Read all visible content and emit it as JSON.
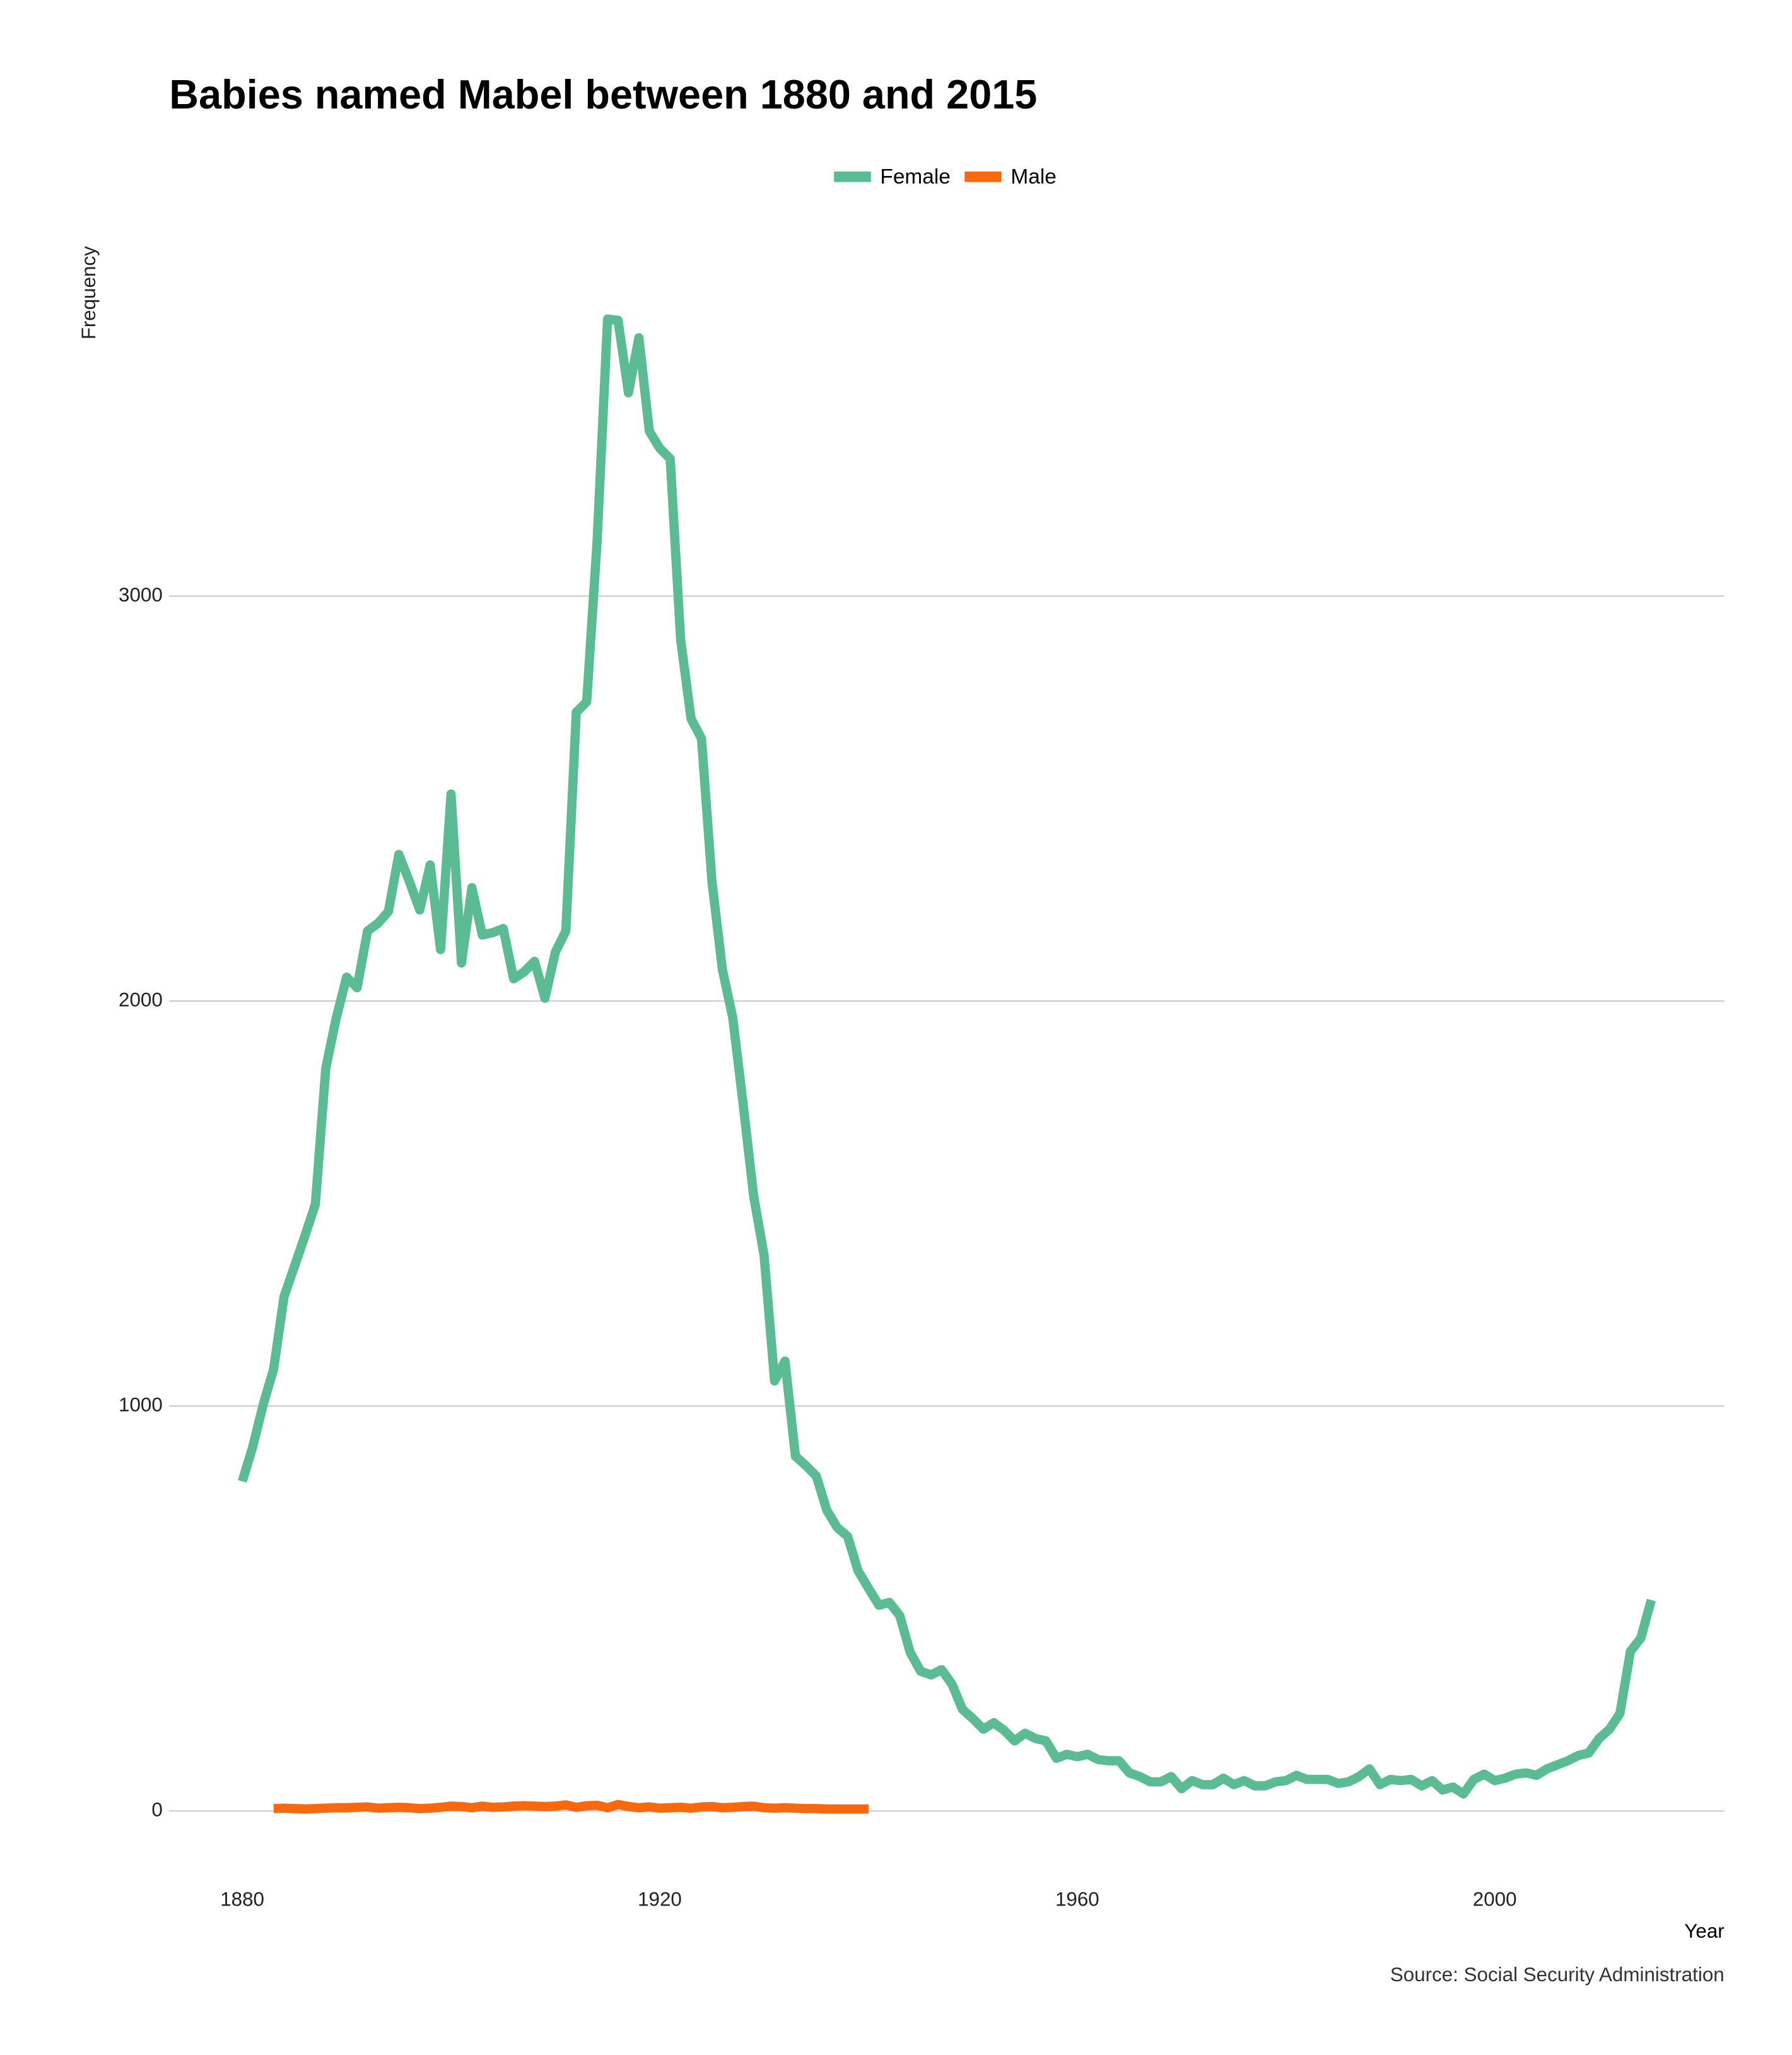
{
  "chart_data": {
    "type": "line",
    "title": "Babies named Mabel between 1880 and 2015",
    "y_label": "Frequency",
    "x_label": "Year",
    "source": "Source: Social Security Administration",
    "x": [
      1880,
      1881,
      1882,
      1883,
      1884,
      1885,
      1886,
      1887,
      1888,
      1889,
      1890,
      1891,
      1892,
      1893,
      1894,
      1895,
      1896,
      1897,
      1898,
      1899,
      1900,
      1901,
      1902,
      1903,
      1904,
      1905,
      1906,
      1907,
      1908,
      1909,
      1910,
      1911,
      1912,
      1913,
      1914,
      1915,
      1916,
      1917,
      1918,
      1919,
      1920,
      1921,
      1922,
      1923,
      1924,
      1925,
      1926,
      1927,
      1928,
      1929,
      1930,
      1931,
      1932,
      1933,
      1934,
      1935,
      1936,
      1937,
      1938,
      1939,
      1940,
      1941,
      1942,
      1943,
      1944,
      1945,
      1946,
      1947,
      1948,
      1949,
      1950,
      1951,
      1952,
      1953,
      1954,
      1955,
      1956,
      1957,
      1958,
      1959,
      1960,
      1961,
      1962,
      1963,
      1964,
      1965,
      1966,
      1967,
      1968,
      1969,
      1970,
      1971,
      1972,
      1973,
      1974,
      1975,
      1976,
      1977,
      1978,
      1979,
      1980,
      1981,
      1982,
      1983,
      1984,
      1985,
      1986,
      1987,
      1988,
      1989,
      1990,
      1991,
      1992,
      1993,
      1994,
      1995,
      1996,
      1997,
      1998,
      1999,
      2000,
      2001,
      2002,
      2003,
      2004,
      2005,
      2006,
      2007,
      2008,
      2009,
      2010,
      2011,
      2012,
      2013,
      2014,
      2015
    ],
    "series": [
      {
        "name": "Female",
        "color": "#5bbb93",
        "values": [
          814,
          899,
          1003,
          1091,
          1270,
          1345,
          1420,
          1498,
          1834,
          1958,
          2059,
          2033,
          2173,
          2192,
          2221,
          2362,
          2296,
          2225,
          2336,
          2127,
          2511,
          2094,
          2280,
          2163,
          2169,
          2179,
          2055,
          2072,
          2098,
          2007,
          2121,
          2173,
          2713,
          2739,
          3137,
          3684,
          3681,
          3502,
          3638,
          3407,
          3365,
          3339,
          2893,
          2697,
          2648,
          2296,
          2078,
          1958,
          1743,
          1518,
          1371,
          1062,
          1111,
          876,
          853,
          827,
          743,
          700,
          678,
          593,
          550,
          508,
          515,
          482,
          391,
          345,
          336,
          349,
          313,
          251,
          228,
          202,
          218,
          199,
          173,
          192,
          179,
          173,
          130,
          140,
          134,
          140,
          127,
          124,
          124,
          94,
          85,
          72,
          72,
          85,
          55,
          75,
          65,
          65,
          81,
          65,
          75,
          62,
          62,
          72,
          75,
          88,
          78,
          78,
          78,
          68,
          72,
          85,
          104,
          65,
          78,
          75,
          78,
          62,
          75,
          52,
          59,
          42,
          78,
          91,
          75,
          81,
          91,
          94,
          88,
          104,
          114,
          124,
          137,
          143,
          179,
          202,
          241,
          394,
          427,
          521
        ]
      },
      {
        "name": "Male",
        "color": "#f8690f",
        "values": [
          null,
          null,
          null,
          6,
          7,
          6,
          5,
          6,
          7,
          8,
          8,
          9,
          10,
          7,
          8,
          9,
          8,
          6,
          7,
          9,
          12,
          11,
          8,
          12,
          9,
          10,
          12,
          13,
          12,
          11,
          12,
          15,
          9,
          13,
          14,
          8,
          16,
          11,
          8,
          10,
          7,
          8,
          9,
          7,
          10,
          11,
          8,
          9,
          11,
          12,
          8,
          7,
          8,
          7,
          6,
          6,
          5,
          5,
          5,
          5,
          5,
          null,
          null,
          null,
          null,
          null,
          null,
          null,
          null,
          null,
          null,
          null,
          null,
          null,
          null,
          null,
          null,
          null,
          null,
          null,
          null,
          null,
          null,
          null,
          null,
          null,
          null,
          null,
          null,
          null,
          null,
          null,
          null,
          null,
          null,
          null,
          null,
          null,
          null,
          null,
          null,
          null,
          null,
          null,
          null,
          null,
          null,
          null,
          null,
          null,
          null,
          null,
          null,
          null,
          null,
          null,
          null,
          null,
          null,
          null,
          null,
          null,
          null,
          null,
          null,
          null,
          null,
          null,
          null,
          null,
          null,
          null,
          null,
          null,
          null,
          null
        ]
      }
    ],
    "xlim": [
      1873,
      2022
    ],
    "ylim": [
      -100,
      3700
    ],
    "xticks": [
      1880,
      1920,
      1960,
      2000
    ],
    "yticks": [
      0,
      1000,
      2000,
      3000
    ],
    "grid": true,
    "legend": "top"
  }
}
